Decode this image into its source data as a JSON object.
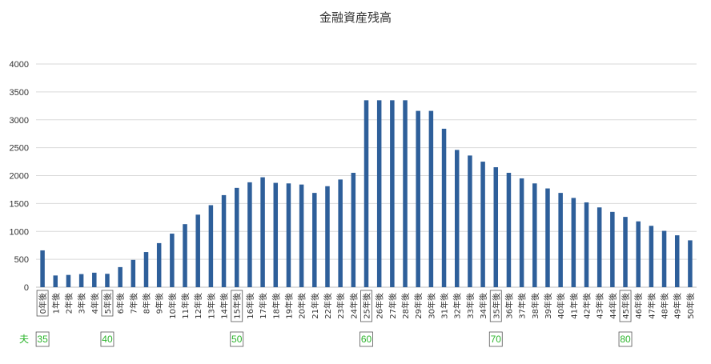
{
  "chart_data": {
    "type": "bar",
    "title": "金融資産残高",
    "categories": [
      "0年後",
      "1年後",
      "2年後",
      "3年後",
      "4年後",
      "5年後",
      "6年後",
      "7年後",
      "8年後",
      "9年後",
      "10年後",
      "11年後",
      "12年後",
      "13年後",
      "14年後",
      "15年後",
      "16年後",
      "17年後",
      "18年後",
      "19年後",
      "20年後",
      "21年後",
      "22年後",
      "23年後",
      "24年後",
      "25年後",
      "26年後",
      "27年後",
      "28年後",
      "29年後",
      "30年後",
      "31年後",
      "32年後",
      "33年後",
      "34年後",
      "35年後",
      "36年後",
      "37年後",
      "38年後",
      "39年後",
      "40年後",
      "41年後",
      "42年後",
      "43年後",
      "44年後",
      "45年後",
      "46年後",
      "47年後",
      "48年後",
      "49年後",
      "50年後"
    ],
    "values": [
      660,
      210,
      220,
      235,
      260,
      240,
      360,
      490,
      630,
      790,
      960,
      1130,
      1300,
      1470,
      1650,
      1780,
      1880,
      1970,
      1870,
      1860,
      1840,
      1690,
      1810,
      1930,
      2050,
      3350,
      3350,
      3350,
      3350,
      3160,
      3160,
      2840,
      2460,
      2360,
      2250,
      2150,
      2050,
      1950,
      1860,
      1770,
      1690,
      1600,
      1520,
      1430,
      1350,
      1260,
      1180,
      1100,
      1010,
      930,
      840
    ],
    "ylim": [
      0,
      4000
    ],
    "yticks": [
      0,
      500,
      1000,
      1500,
      2000,
      2500,
      3000,
      3500,
      4000
    ],
    "grid": true,
    "bar_color": "#2e5f9a",
    "highlighted_categories": [
      "0年後",
      "5年後",
      "15年後",
      "25年後",
      "35年後",
      "45年後"
    ],
    "age_row": {
      "label": "夫",
      "color": "#2db52d",
      "markers": [
        {
          "category": "0年後",
          "age": "35"
        },
        {
          "category": "5年後",
          "age": "40"
        },
        {
          "category": "15年後",
          "age": "50"
        },
        {
          "category": "25年後",
          "age": "60"
        },
        {
          "category": "35年後",
          "age": "70"
        },
        {
          "category": "45年後",
          "age": "80"
        }
      ]
    }
  }
}
